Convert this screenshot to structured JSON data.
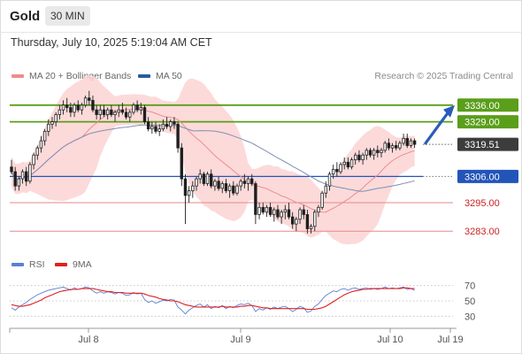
{
  "header": {
    "symbol": "Gold",
    "timeframe": "30 MIN",
    "datetime": "Thursday, July 10, 2025 5:19:04 AM CET",
    "credit": "Research © 2025 Trading Central"
  },
  "legend": {
    "ma20": {
      "label": "MA 20 + Bollinger Bands",
      "color": "#f08b8b"
    },
    "ma50": {
      "label": "MA 50",
      "color": "#2c5aa0"
    },
    "rsi": {
      "label": "RSI",
      "color": "#5b7fd6"
    },
    "ma9": {
      "label": "9MA",
      "color": "#e02020"
    }
  },
  "chart_data": [
    {
      "type": "candlestick",
      "title": "",
      "ylim": [
        3276,
        3343
      ],
      "x_ticks": [
        "Jul 8",
        "Jul 9",
        "Jul 10",
        "Jul 19"
      ],
      "levels": [
        {
          "value": 3336.0,
          "label": "3336.00",
          "kind": "resistance",
          "color": "#5a9e1a"
        },
        {
          "value": 3329.0,
          "label": "3329.00",
          "kind": "resistance",
          "color": "#5a9e1a"
        },
        {
          "value": 3319.51,
          "label": "3319.51",
          "kind": "last-price",
          "color": "#333333"
        },
        {
          "value": 3306.0,
          "label": "3306.00",
          "kind": "pivot",
          "color": "#2355b8"
        },
        {
          "value": 3295.0,
          "label": "3295.00",
          "kind": "support",
          "color": "#cc2222"
        },
        {
          "value": 3283.0,
          "label": "3283.00",
          "kind": "support",
          "color": "#cc2222"
        }
      ],
      "forecast_arrow": {
        "from": 3320,
        "to": 3336
      },
      "candles": [
        [
          3310,
          3313,
          3307,
          3308
        ],
        [
          3308,
          3310,
          3300,
          3302
        ],
        [
          3302,
          3306,
          3300,
          3305
        ],
        [
          3305,
          3309,
          3303,
          3308
        ],
        [
          3308,
          3310,
          3302,
          3304
        ],
        [
          3304,
          3312,
          3303,
          3311
        ],
        [
          3311,
          3316,
          3309,
          3315
        ],
        [
          3315,
          3319,
          3313,
          3318
        ],
        [
          3318,
          3323,
          3316,
          3321
        ],
        [
          3321,
          3326,
          3319,
          3325
        ],
        [
          3325,
          3330,
          3323,
          3328
        ],
        [
          3328,
          3331,
          3326,
          3329
        ],
        [
          3329,
          3333,
          3327,
          3332
        ],
        [
          3332,
          3336,
          3330,
          3334
        ],
        [
          3334,
          3338,
          3332,
          3336
        ],
        [
          3336,
          3339,
          3333,
          3335
        ],
        [
          3335,
          3337,
          3331,
          3333
        ],
        [
          3333,
          3337,
          3331,
          3336
        ],
        [
          3336,
          3338,
          3333,
          3334
        ],
        [
          3334,
          3337,
          3332,
          3336
        ],
        [
          3336,
          3340,
          3335,
          3339
        ],
        [
          3339,
          3342,
          3336,
          3338
        ],
        [
          3338,
          3340,
          3333,
          3334
        ],
        [
          3334,
          3336,
          3330,
          3332
        ],
        [
          3332,
          3336,
          3330,
          3334
        ],
        [
          3334,
          3336,
          3331,
          3332
        ],
        [
          3332,
          3335,
          3330,
          3334
        ],
        [
          3334,
          3336,
          3331,
          3332
        ],
        [
          3332,
          3334,
          3329,
          3333
        ],
        [
          3333,
          3336,
          3331,
          3334
        ],
        [
          3334,
          3337,
          3332,
          3333
        ],
        [
          3333,
          3335,
          3330,
          3331
        ],
        [
          3331,
          3334,
          3329,
          3333
        ],
        [
          3333,
          3337,
          3332,
          3336
        ],
        [
          3336,
          3338,
          3333,
          3334
        ],
        [
          3334,
          3337,
          3332,
          3335
        ],
        [
          3335,
          3336,
          3328,
          3329
        ],
        [
          3329,
          3331,
          3325,
          3326
        ],
        [
          3326,
          3329,
          3324,
          3327
        ],
        [
          3327,
          3329,
          3324,
          3325
        ],
        [
          3325,
          3328,
          3323,
          3326
        ],
        [
          3326,
          3330,
          3325,
          3328
        ],
        [
          3328,
          3331,
          3326,
          3327
        ],
        [
          3327,
          3330,
          3325,
          3329
        ],
        [
          3329,
          3331,
          3326,
          3328
        ],
        [
          3328,
          3329,
          3316,
          3318
        ],
        [
          3318,
          3320,
          3302,
          3305
        ],
        [
          3305,
          3307,
          3286,
          3298
        ],
        [
          3298,
          3302,
          3295,
          3300
        ],
        [
          3300,
          3304,
          3297,
          3302
        ],
        [
          3302,
          3306,
          3300,
          3305
        ],
        [
          3305,
          3309,
          3303,
          3307
        ],
        [
          3307,
          3308,
          3302,
          3303
        ],
        [
          3303,
          3308,
          3302,
          3307
        ],
        [
          3307,
          3309,
          3301,
          3302
        ],
        [
          3302,
          3305,
          3300,
          3304
        ],
        [
          3304,
          3306,
          3300,
          3301
        ],
        [
          3301,
          3304,
          3299,
          3303
        ],
        [
          3303,
          3305,
          3299,
          3300
        ],
        [
          3300,
          3303,
          3297,
          3302
        ],
        [
          3302,
          3304,
          3298,
          3299
        ],
        [
          3299,
          3303,
          3298,
          3302
        ],
        [
          3302,
          3305,
          3300,
          3304
        ],
        [
          3304,
          3307,
          3301,
          3303
        ],
        [
          3303,
          3306,
          3300,
          3305
        ],
        [
          3305,
          3307,
          3302,
          3303
        ],
        [
          3303,
          3304,
          3286,
          3290
        ],
        [
          3290,
          3295,
          3288,
          3293
        ],
        [
          3293,
          3295,
          3290,
          3291
        ],
        [
          3291,
          3294,
          3289,
          3293
        ],
        [
          3293,
          3295,
          3289,
          3290
        ],
        [
          3290,
          3293,
          3287,
          3292
        ],
        [
          3292,
          3294,
          3288,
          3289
        ],
        [
          3289,
          3292,
          3286,
          3291
        ],
        [
          3291,
          3294,
          3288,
          3292
        ],
        [
          3292,
          3295,
          3288,
          3289
        ],
        [
          3289,
          3291,
          3284,
          3286
        ],
        [
          3286,
          3289,
          3283,
          3288
        ],
        [
          3288,
          3293,
          3286,
          3292
        ],
        [
          3292,
          3294,
          3288,
          3290
        ],
        [
          3290,
          3292,
          3282,
          3284
        ],
        [
          3284,
          3286,
          3282,
          3285
        ],
        [
          3285,
          3292,
          3283,
          3291
        ],
        [
          3291,
          3294,
          3289,
          3293
        ],
        [
          3293,
          3300,
          3292,
          3299
        ],
        [
          3299,
          3304,
          3297,
          3302
        ],
        [
          3302,
          3308,
          3300,
          3307
        ],
        [
          3307,
          3311,
          3305,
          3309
        ],
        [
          3309,
          3312,
          3306,
          3308
        ],
        [
          3308,
          3312,
          3307,
          3311
        ],
        [
          3311,
          3314,
          3309,
          3312
        ],
        [
          3312,
          3314,
          3309,
          3310
        ],
        [
          3310,
          3314,
          3309,
          3313
        ],
        [
          3313,
          3316,
          3311,
          3315
        ],
        [
          3315,
          3317,
          3312,
          3313
        ],
        [
          3313,
          3316,
          3311,
          3315
        ],
        [
          3315,
          3318,
          3313,
          3317
        ],
        [
          3317,
          3318,
          3314,
          3315
        ],
        [
          3315,
          3318,
          3313,
          3317
        ],
        [
          3317,
          3319,
          3314,
          3316
        ],
        [
          3316,
          3318,
          3314,
          3317
        ],
        [
          3317,
          3321,
          3316,
          3320
        ],
        [
          3320,
          3322,
          3317,
          3318
        ],
        [
          3318,
          3320,
          3316,
          3319
        ],
        [
          3319,
          3321,
          3317,
          3318
        ],
        [
          3318,
          3321,
          3317,
          3320
        ],
        [
          3320,
          3324,
          3319,
          3322
        ],
        [
          3322,
          3324,
          3318,
          3319
        ],
        [
          3319,
          3322,
          3318,
          3321
        ],
        [
          3321,
          3322,
          3318,
          3319.51
        ]
      ]
    },
    {
      "type": "line",
      "title": "",
      "ylim": [
        20,
        80
      ],
      "y_ticks": [
        70,
        50,
        30
      ],
      "series": [
        {
          "name": "RSI",
          "values": [
            41,
            38,
            42,
            45,
            48,
            52,
            55,
            58,
            60,
            62,
            64,
            65,
            66,
            67,
            68,
            66,
            64,
            67,
            65,
            66,
            68,
            67,
            63,
            60,
            62,
            60,
            62,
            61,
            59,
            61,
            60,
            57,
            58,
            61,
            59,
            60,
            52,
            48,
            50,
            47,
            49,
            51,
            50,
            52,
            51,
            42,
            38,
            33,
            38,
            41,
            44,
            46,
            42,
            45,
            40,
            43,
            41,
            44,
            40,
            43,
            41,
            44,
            46,
            45,
            47,
            44,
            36,
            40,
            38,
            41,
            39,
            42,
            40,
            42,
            43,
            40,
            36,
            39,
            43,
            41,
            35,
            37,
            43,
            46,
            52,
            57,
            60,
            63,
            62,
            65,
            66,
            64,
            66,
            67,
            65,
            66,
            67,
            65,
            66,
            65,
            66,
            68,
            66,
            67,
            66,
            67,
            68,
            65,
            66,
            64
          ]
        },
        {
          "name": "9MA",
          "values": [
            45,
            44,
            43,
            43,
            44,
            45,
            47,
            49,
            51,
            54,
            56,
            58,
            60,
            62,
            63,
            64,
            65,
            65,
            65,
            66,
            66,
            66,
            66,
            65,
            64,
            63,
            62,
            62,
            61,
            61,
            61,
            60,
            60,
            60,
            60,
            60,
            59,
            57,
            56,
            55,
            53,
            52,
            51,
            50,
            50,
            49,
            47,
            45,
            44,
            43,
            42,
            42,
            42,
            42,
            42,
            42,
            42,
            43,
            42,
            42,
            42,
            42,
            43,
            43,
            44,
            44,
            43,
            42,
            41,
            41,
            40,
            40,
            40,
            40,
            40,
            40,
            40,
            40,
            40,
            40,
            39,
            39,
            39,
            40,
            41,
            43,
            46,
            49,
            52,
            55,
            58,
            60,
            62,
            63,
            64,
            65,
            65,
            66,
            66,
            66,
            66,
            66,
            66,
            66,
            66,
            66,
            67,
            67,
            66,
            66
          ]
        }
      ]
    }
  ]
}
